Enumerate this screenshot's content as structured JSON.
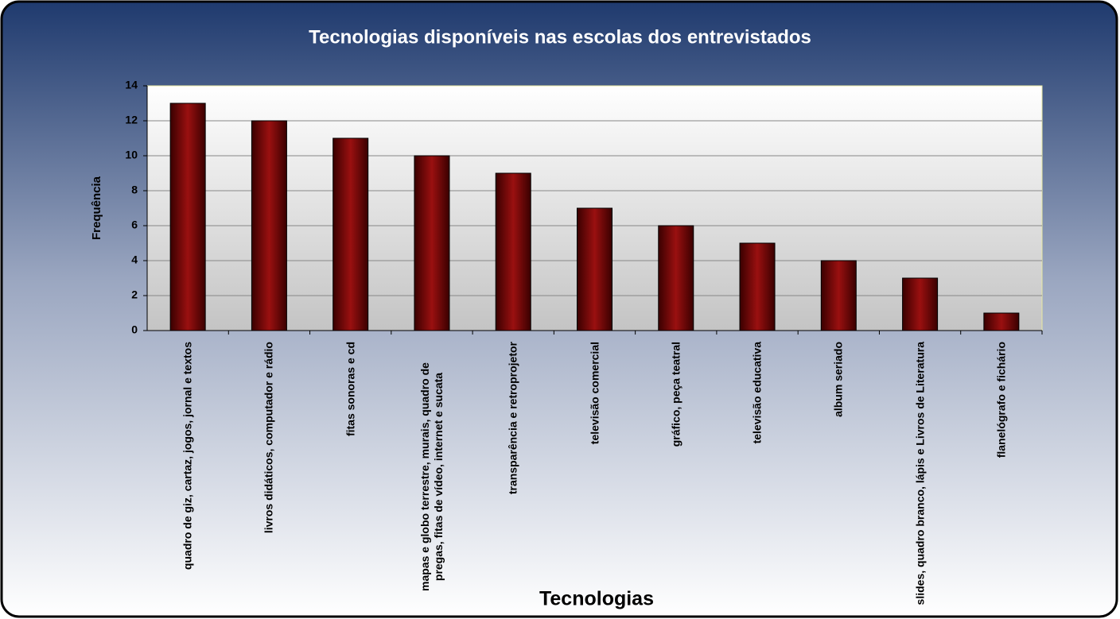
{
  "chart_data": {
    "type": "bar",
    "title": "Tecnologias disponíveis nas escolas dos entrevistados",
    "x_label": "Tecnologias",
    "y_label": "Frequência",
    "categories": [
      "quadro de giz, cartaz, jogos, jornal e textos",
      "livros didáticos, computador e rádio",
      "fitas sonoras e cd",
      "mapas e globo terrestre, murais, quadro de pregas, fitas de vídeo, internet e sucata",
      "transparência e retroprojetor",
      "televisão comercial",
      "gráfico, peça teatral",
      "televisão educativa",
      "album seriado",
      "slides, quadro branco, lápis e Livros de Literatura",
      "flanelógrafo e fichário"
    ],
    "values": [
      13,
      12,
      11,
      10,
      9,
      7,
      6,
      5,
      4,
      3,
      1
    ],
    "color": "#7a0000",
    "ylim": [
      0,
      14
    ],
    "yticks": [
      0,
      2,
      4,
      6,
      8,
      10,
      12,
      14
    ],
    "grid": true
  }
}
